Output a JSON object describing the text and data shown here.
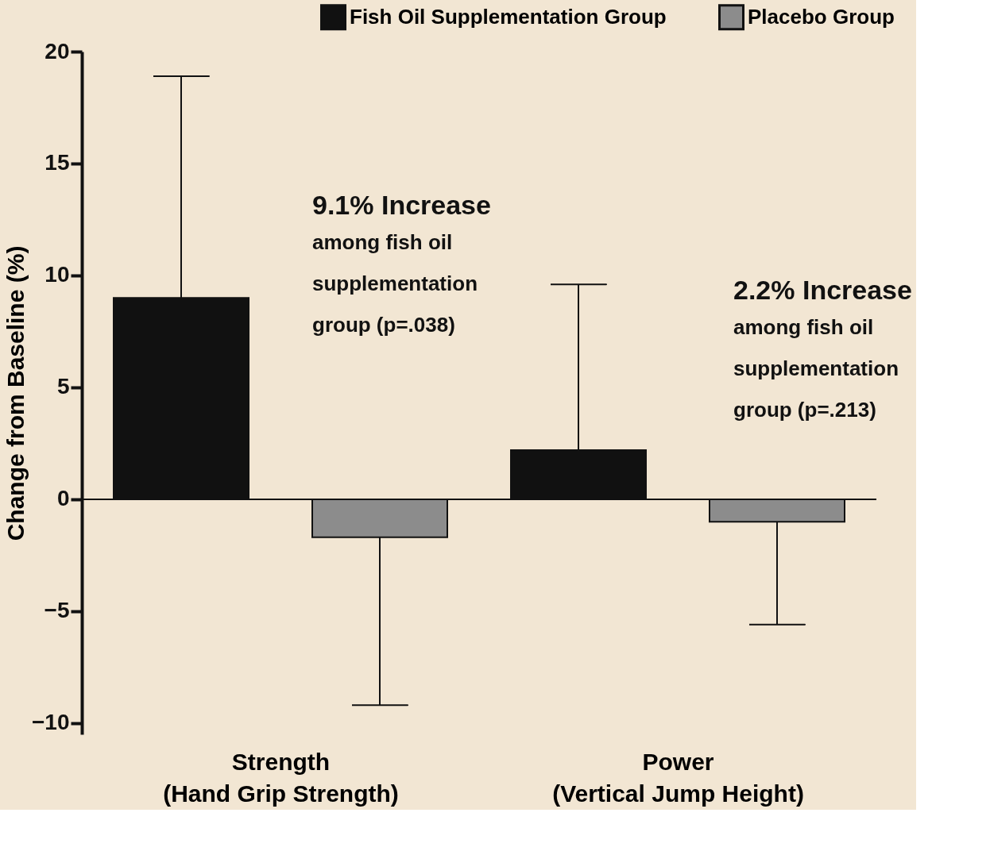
{
  "chart_data": {
    "type": "bar",
    "ylabel": "Change from Baseline (%)",
    "categories": [
      "Strength\n(Hand Grip Strength)",
      "Power\n(Vertical Jump Height)"
    ],
    "series": [
      {
        "name": "Fish Oil Supplementation Group",
        "color": "#111111",
        "values": [
          9.0,
          2.2
        ],
        "errors": [
          [
            9.0,
            18.9
          ],
          [
            2.2,
            9.6
          ]
        ]
      },
      {
        "name": "Placebo Group",
        "color": "#8c8c8c",
        "values": [
          -1.7,
          -1.0
        ],
        "errors": [
          [
            -9.2,
            -1.7
          ],
          [
            -5.6,
            -1.0
          ]
        ]
      }
    ],
    "ylim": [
      -10.5,
      20
    ],
    "yticks": [
      -10,
      -5,
      0,
      5,
      10,
      15,
      20
    ],
    "ref_lines": [
      {
        "axis": "y",
        "value": 0
      }
    ],
    "annotations": [
      "9.1% Increase\namong fish oil\nsupplementation\ngroup (p=.038)",
      "2.2% Increase\namong fish oil\nsupplementation\ngroup (p=.213)"
    ],
    "legend": "top right",
    "grid": false
  }
}
